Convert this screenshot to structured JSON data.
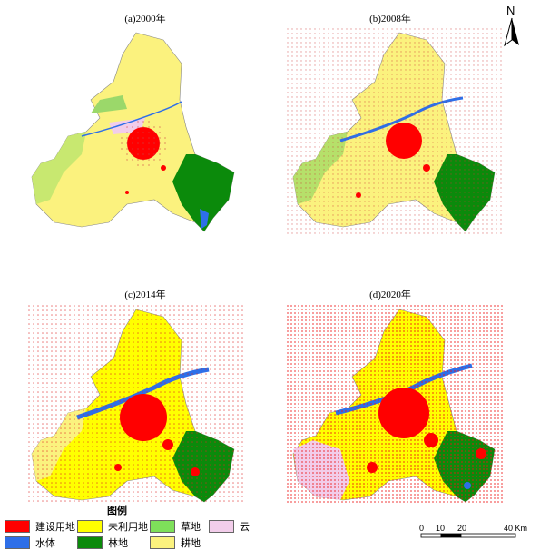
{
  "panels": [
    {
      "title": "(a)2000年"
    },
    {
      "title": "(b)2008年"
    },
    {
      "title": "(c)2014年"
    },
    {
      "title": "(d)2020年"
    }
  ],
  "north": {
    "label": "N"
  },
  "legend": {
    "title": "图例",
    "items": [
      {
        "label": "建设用地",
        "color": "#ff0000"
      },
      {
        "label": "未利用地",
        "color": "#ffff00"
      },
      {
        "label": "草地",
        "color": "#7ee05a"
      },
      {
        "label": "云",
        "color": "#f2cdea"
      },
      {
        "label": "水体",
        "color": "#2e6fe8"
      },
      {
        "label": "林地",
        "color": "#0b8a0b"
      },
      {
        "label": "耕地",
        "color": "#fbf27e"
      }
    ]
  },
  "scalebar": {
    "ticks": [
      "0",
      "10",
      "20",
      "40 Km"
    ]
  }
}
